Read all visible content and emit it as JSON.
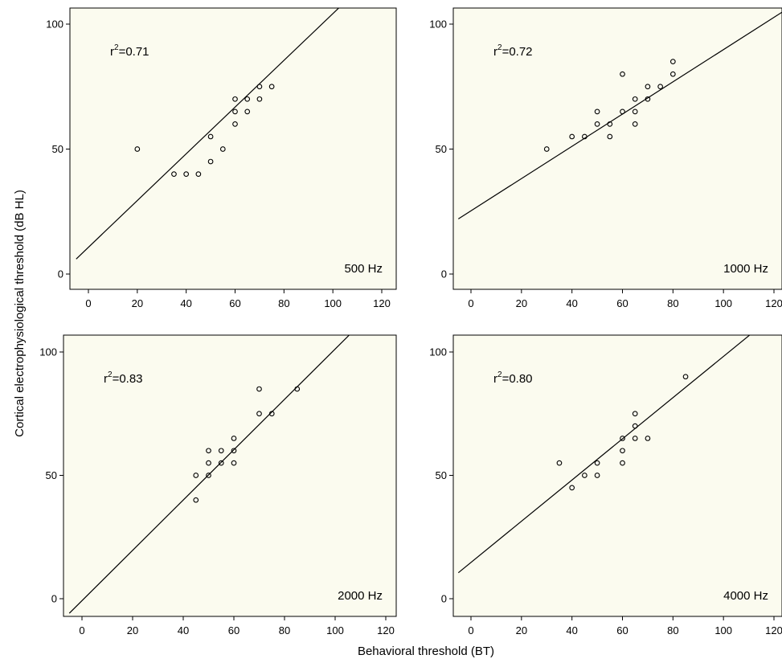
{
  "figure": {
    "xlabel": "Behavioral threshold (BT)",
    "ylabel": "Cortical electrophysiological threshold (dB HL)"
  },
  "chart_data": [
    {
      "type": "scatter",
      "panel_label": "500 Hz",
      "r2_prefix": "r",
      "r2_exp": "2",
      "r2_value": "=0.71",
      "xlim": [
        -5,
        125
      ],
      "ylim": [
        -2,
        105
      ],
      "xticks": [
        0,
        20,
        40,
        60,
        80,
        100,
        120
      ],
      "yticks": [
        0,
        50,
        100
      ],
      "background": "#fbfbef",
      "points": [
        [
          20,
          50
        ],
        [
          35,
          40
        ],
        [
          40,
          40
        ],
        [
          45,
          40
        ],
        [
          50,
          45
        ],
        [
          50,
          55
        ],
        [
          55,
          50
        ],
        [
          60,
          60
        ],
        [
          60,
          65
        ],
        [
          60,
          70
        ],
        [
          65,
          65
        ],
        [
          65,
          70
        ],
        [
          70,
          70
        ],
        [
          70,
          75
        ],
        [
          75,
          75
        ]
      ],
      "fit_line": {
        "intercept": 10.7,
        "slope": 0.935
      }
    },
    {
      "type": "scatter",
      "panel_label": "1000 Hz",
      "r2_prefix": "r",
      "r2_exp": "2",
      "r2_value": "=0.72",
      "xlim": [
        -5,
        125
      ],
      "ylim": [
        -2,
        105
      ],
      "xticks": [
        0,
        20,
        40,
        60,
        80,
        100,
        120
      ],
      "yticks": [
        0,
        50,
        100
      ],
      "background": "#fbfbef",
      "points": [
        [
          30,
          50
        ],
        [
          40,
          55
        ],
        [
          45,
          55
        ],
        [
          50,
          60
        ],
        [
          50,
          65
        ],
        [
          55,
          55
        ],
        [
          55,
          60
        ],
        [
          60,
          65
        ],
        [
          60,
          80
        ],
        [
          65,
          60
        ],
        [
          65,
          65
        ],
        [
          65,
          70
        ],
        [
          70,
          70
        ],
        [
          70,
          75
        ],
        [
          75,
          75
        ],
        [
          80,
          80
        ],
        [
          80,
          85
        ]
      ],
      "fit_line": {
        "intercept": 25.3,
        "slope": 0.645
      }
    },
    {
      "type": "scatter",
      "panel_label": "2000 Hz",
      "r2_prefix": "r",
      "r2_exp": "2",
      "r2_value": "=0.83",
      "xlim": [
        -5,
        125
      ],
      "ylim": [
        -2,
        105
      ],
      "xticks": [
        0,
        20,
        40,
        60,
        80,
        100,
        120
      ],
      "yticks": [
        0,
        50,
        100
      ],
      "background": "#fbfbef",
      "points": [
        [
          45,
          40
        ],
        [
          45,
          50
        ],
        [
          50,
          50
        ],
        [
          50,
          55
        ],
        [
          50,
          60
        ],
        [
          55,
          55
        ],
        [
          55,
          60
        ],
        [
          60,
          55
        ],
        [
          60,
          60
        ],
        [
          60,
          65
        ],
        [
          70,
          75
        ],
        [
          70,
          85
        ],
        [
          75,
          75
        ],
        [
          85,
          85
        ]
      ],
      "fit_line": {
        "intercept": -0.8,
        "slope": 1.02
      }
    },
    {
      "type": "scatter",
      "panel_label": "4000 Hz",
      "r2_prefix": "r",
      "r2_exp": "2",
      "r2_value": "=0.80",
      "xlim": [
        -5,
        125
      ],
      "ylim": [
        -2,
        105
      ],
      "xticks": [
        0,
        20,
        40,
        60,
        80,
        100,
        120
      ],
      "yticks": [
        0,
        50,
        100
      ],
      "background": "#fbfbef",
      "points": [
        [
          35,
          55
        ],
        [
          40,
          45
        ],
        [
          45,
          50
        ],
        [
          50,
          50
        ],
        [
          50,
          55
        ],
        [
          60,
          55
        ],
        [
          60,
          60
        ],
        [
          60,
          65
        ],
        [
          65,
          65
        ],
        [
          65,
          70
        ],
        [
          65,
          75
        ],
        [
          70,
          65
        ],
        [
          85,
          90
        ]
      ],
      "fit_line": {
        "intercept": 14.7,
        "slope": 0.835
      }
    }
  ]
}
